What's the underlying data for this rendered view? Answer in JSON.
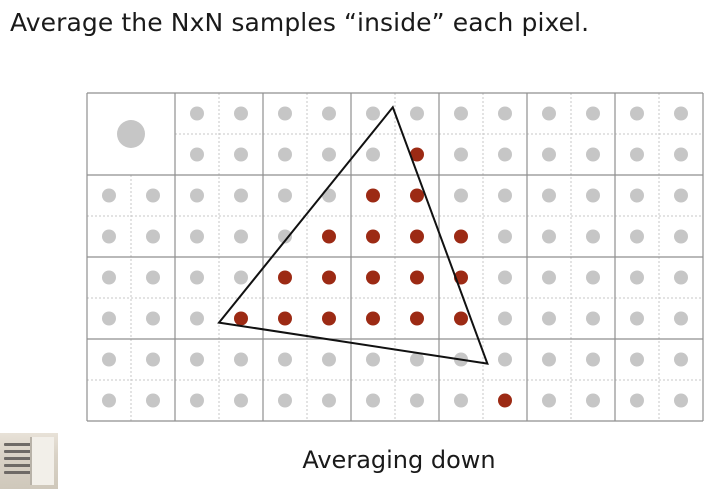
{
  "title": "Average the NxN samples “inside” each pixel.",
  "caption": "Averaging down",
  "colors": {
    "grid_line": "#8f8f8f",
    "sub_grid_line": "#c7c7c7",
    "sample_gray": "#c6c6c6",
    "sample_red": "#9c2a14",
    "triangle": "#111111"
  },
  "grid": {
    "pixel_columns": 7,
    "pixel_rows": 4,
    "samples_per_pixel_side": 2,
    "first_pixel_merged": true
  },
  "triangle_vertices_in_sample_units": [
    [
      6.95,
      0.35
    ],
    [
      3.0,
      5.6
    ],
    [
      9.1,
      6.6
    ]
  ],
  "inside_samples": [
    [
      7,
      1
    ],
    [
      6,
      2
    ],
    [
      7,
      2
    ],
    [
      5,
      3
    ],
    [
      6,
      3
    ],
    [
      7,
      3
    ],
    [
      8,
      3
    ],
    [
      4,
      4
    ],
    [
      5,
      4
    ],
    [
      6,
      4
    ],
    [
      7,
      4
    ],
    [
      8,
      4
    ],
    [
      3,
      5
    ],
    [
      4,
      5
    ],
    [
      5,
      5
    ],
    [
      6,
      5
    ],
    [
      7,
      5
    ],
    [
      8,
      5
    ],
    [
      9,
      7
    ]
  ]
}
